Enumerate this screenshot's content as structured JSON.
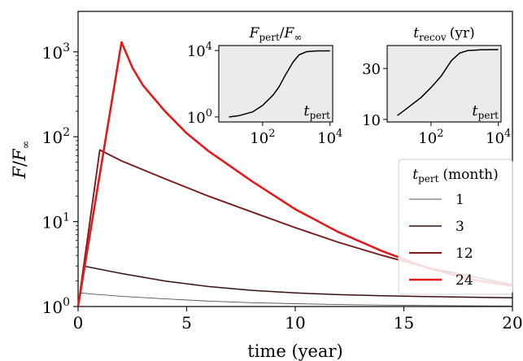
{
  "chart_data": [
    {
      "type": "line",
      "xlabel": "time (year)",
      "ylabel_main": "F",
      "ylabel_den": "F",
      "ylabel_den_sub": "∞",
      "xlim": [
        0,
        20
      ],
      "ylim": [
        1,
        3000
      ],
      "yscale": "log",
      "xticks": [
        0,
        5,
        10,
        15,
        20
      ],
      "xtick_labels": [
        "0",
        "5",
        "10",
        "15",
        "20"
      ],
      "yticks": [
        1,
        10,
        100,
        1000
      ],
      "ytick_bases": [
        "10",
        "10",
        "10",
        "10"
      ],
      "ytick_exps": [
        "0",
        "1",
        "2",
        "3"
      ],
      "legend": {
        "title_var": "t",
        "title_sub": "pert",
        "title_unit": "(month)",
        "placement": "right",
        "entries": [
          "1",
          "3",
          "12",
          "24"
        ]
      },
      "series": [
        {
          "name": "1",
          "color": "#555555",
          "points": [
            [
              0,
              1
            ],
            [
              0.08,
              1.45
            ],
            [
              1,
              1.38
            ],
            [
              2,
              1.32
            ],
            [
              4,
              1.23
            ],
            [
              6,
              1.16
            ],
            [
              8,
              1.11
            ],
            [
              10,
              1.08
            ],
            [
              12,
              1.055
            ],
            [
              14,
              1.04
            ],
            [
              16,
              1.03
            ],
            [
              18,
              1.02
            ],
            [
              20,
              1.015
            ]
          ]
        },
        {
          "name": "3",
          "color": "#3a0f0f",
          "points": [
            [
              0,
              1
            ],
            [
              0.25,
              3.0
            ],
            [
              1,
              2.75
            ],
            [
              2,
              2.45
            ],
            [
              4,
              2.0
            ],
            [
              6,
              1.72
            ],
            [
              8,
              1.55
            ],
            [
              10,
              1.45
            ],
            [
              12,
              1.38
            ],
            [
              14,
              1.34
            ],
            [
              16,
              1.31
            ],
            [
              18,
              1.29
            ],
            [
              20,
              1.27
            ]
          ]
        },
        {
          "name": "12",
          "color": "#7a1a1a",
          "points": [
            [
              0,
              1
            ],
            [
              1,
              70
            ],
            [
              2,
              52
            ],
            [
              4,
              32
            ],
            [
              6,
              20
            ],
            [
              8,
              13
            ],
            [
              10,
              8.5
            ],
            [
              12,
              5.7
            ],
            [
              14,
              4.0
            ],
            [
              16,
              2.9
            ],
            [
              18,
              2.3
            ],
            [
              20,
              1.8
            ]
          ]
        },
        {
          "name": "24",
          "color": "#e31a1c",
          "points": [
            [
              0,
              1
            ],
            [
              2,
              1300
            ],
            [
              2.5,
              650
            ],
            [
              3,
              400
            ],
            [
              4,
              200
            ],
            [
              5,
              110
            ],
            [
              6,
              68
            ],
            [
              8,
              30
            ],
            [
              10,
              14
            ],
            [
              12,
              7.5
            ],
            [
              14,
              4.5
            ],
            [
              16,
              2.9
            ],
            [
              18,
              2.1
            ],
            [
              20,
              1.75
            ]
          ]
        }
      ]
    },
    {
      "type": "line",
      "title_var": "F",
      "title_sub": "pert",
      "title_den": "F",
      "title_den_sub": "∞",
      "xscale": "log",
      "yscale": "log",
      "xlim": [
        5,
        12000
      ],
      "ylim": [
        0.5,
        20000
      ],
      "xlabel_var": "t",
      "xlabel_sub": "pert",
      "xticks": [
        100,
        10000
      ],
      "xtick_exps": [
        "2",
        "4"
      ],
      "yticks": [
        1,
        10000
      ],
      "ytick_exps": [
        "0",
        "4"
      ],
      "tick_base": "10",
      "series": [
        {
          "color": "#000000",
          "points": [
            [
              10,
              1.0
            ],
            [
              20,
              1.2
            ],
            [
              50,
              2
            ],
            [
              100,
              5
            ],
            [
              200,
              20
            ],
            [
              300,
              60
            ],
            [
              500,
              400
            ],
            [
              800,
              2000
            ],
            [
              1200,
              5500
            ],
            [
              2000,
              8500
            ],
            [
              4000,
              9500
            ],
            [
              10000,
              9600
            ]
          ]
        }
      ]
    },
    {
      "type": "line",
      "title_var": "t",
      "title_sub": "recov",
      "title_unit": "(yr)",
      "xscale": "log",
      "xlim": [
        5,
        12000
      ],
      "ylim": [
        9,
        39
      ],
      "xlabel_var": "t",
      "xlabel_sub": "pert",
      "xticks": [
        100,
        10000
      ],
      "xtick_exps": [
        "2",
        "4"
      ],
      "yticks": [
        10,
        30
      ],
      "ytick_labels": [
        "10",
        "30"
      ],
      "tick_base": "10",
      "series": [
        {
          "color": "#000000",
          "points": [
            [
              10,
              11.5
            ],
            [
              20,
              14.5
            ],
            [
              50,
              18.5
            ],
            [
              100,
              22.5
            ],
            [
              200,
              27
            ],
            [
              400,
              33
            ],
            [
              700,
              36
            ],
            [
              1200,
              37
            ],
            [
              3000,
              37.3
            ],
            [
              10000,
              37.4
            ]
          ]
        }
      ]
    }
  ]
}
